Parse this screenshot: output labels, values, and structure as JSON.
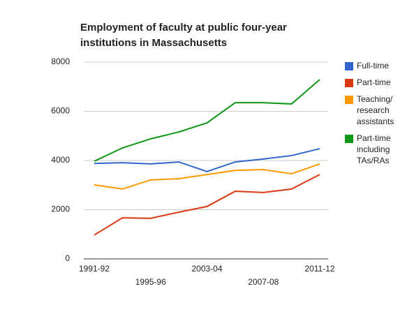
{
  "chart_data": {
    "type": "line",
    "title": "Employment of faculty at public four-year institutions in Massachusetts",
    "categories": [
      "1991-92",
      null,
      "1995-96",
      null,
      "2003-04",
      null,
      "2007-08",
      null,
      "2011-12"
    ],
    "series": [
      {
        "name": "Full-time",
        "color": "#3366cc",
        "values": [
          3880,
          3910,
          3860,
          3940,
          3550,
          3940,
          4060,
          4200,
          4480
        ]
      },
      {
        "name": "Part-time",
        "color": "#dc3912",
        "values": [
          970,
          1670,
          1650,
          1900,
          2130,
          2750,
          2700,
          2840,
          3430
        ]
      },
      {
        "name": "Teaching/ research assistants",
        "color": "#ff9900",
        "values": [
          3010,
          2840,
          3210,
          3260,
          3430,
          3600,
          3630,
          3460,
          3860
        ]
      },
      {
        "name": "Part-time including TAs/RAs",
        "color": "#109618",
        "values": [
          3970,
          4510,
          4880,
          5160,
          5530,
          6350,
          6350,
          6300,
          7290
        ]
      }
    ],
    "ylim": [
      0,
      8000
    ],
    "yticks": [
      0,
      2000,
      4000,
      6000,
      8000
    ],
    "grid": true,
    "legend": "right"
  }
}
